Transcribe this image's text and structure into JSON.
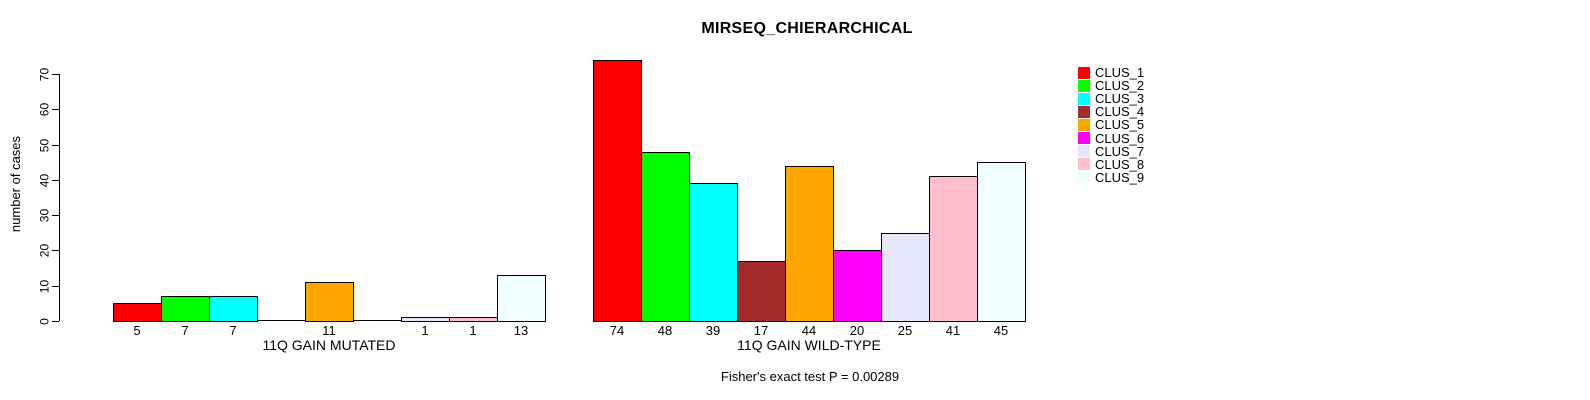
{
  "chart_data": {
    "type": "bar",
    "title": "MIRSEQ_CHIERARCHICAL",
    "ylabel": "number of cases",
    "ylim": [
      0,
      70
    ],
    "yticks": [
      0,
      10,
      20,
      30,
      40,
      50,
      60,
      70
    ],
    "grid": false,
    "legend_position": "top-right",
    "annotation": "Fisher's exact test P = 0.00289",
    "clusters": [
      {
        "name": "CLUS_1",
        "color": "#FF0000"
      },
      {
        "name": "CLUS_2",
        "color": "#00FF00"
      },
      {
        "name": "CLUS_3",
        "color": "#00FFFF"
      },
      {
        "name": "CLUS_4",
        "color": "#A52A2A"
      },
      {
        "name": "CLUS_5",
        "color": "#FFA500"
      },
      {
        "name": "CLUS_6",
        "color": "#FF00FF"
      },
      {
        "name": "CLUS_7",
        "color": "#E6E6FA"
      },
      {
        "name": "CLUS_8",
        "color": "#FFC0CB"
      },
      {
        "name": "CLUS_9",
        "color": "#F0FFFF"
      }
    ],
    "groups": [
      {
        "label": "11Q GAIN MUTATED",
        "values": [
          5,
          7,
          7,
          0,
          11,
          0,
          1,
          1,
          13
        ]
      },
      {
        "label": "11Q GAIN WILD-TYPE",
        "values": [
          74,
          48,
          39,
          17,
          44,
          20,
          25,
          41,
          45
        ]
      }
    ]
  }
}
